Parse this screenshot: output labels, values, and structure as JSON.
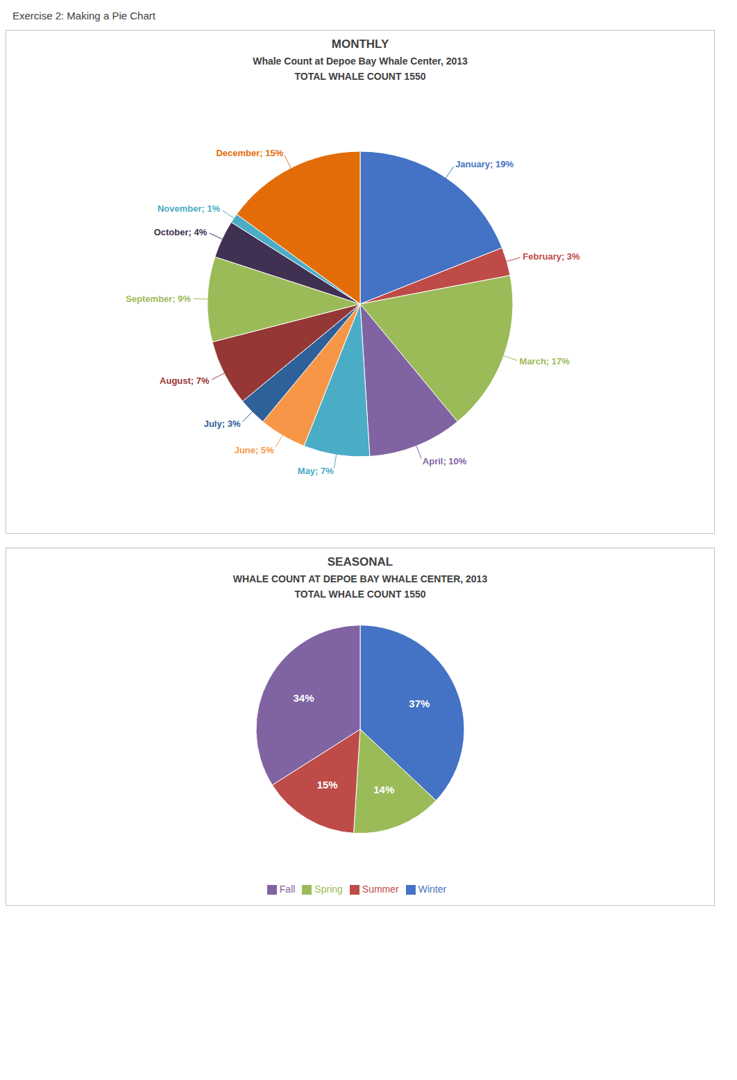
{
  "title": "Exercise 2: Making a Pie Chart",
  "chart_data": [
    {
      "type": "pie",
      "title": "MONTHLY",
      "subtitle": "Whale Count at Depoe Bay Whale Center, 2013",
      "annotations": [
        "TOTAL WHALE COUNT 1550"
      ],
      "categories": [
        "January",
        "February",
        "March",
        "April",
        "May",
        "June",
        "July",
        "August",
        "September",
        "October",
        "November",
        "December"
      ],
      "values": [
        19,
        3,
        17,
        10,
        7,
        5,
        3,
        7,
        9,
        4,
        1,
        15
      ],
      "value_labels": [
        "January; 19%",
        "February; 3%",
        "March; 17%",
        "April; 10%",
        "May; 7%",
        "June; 5%",
        "July; 3%",
        "August; 7%",
        "September; 9%",
        "October; 4%",
        "November; 1%",
        "December; 15%"
      ],
      "colors": [
        "#4472C4",
        "#BE4B48",
        "#9BBB59",
        "#8064A2",
        "#4BACC6",
        "#F79646",
        "#2E6099",
        "#953735",
        "#9BBB59",
        "#403152",
        "#4BACC6",
        "#E36C09"
      ],
      "data_labels": true
    },
    {
      "type": "pie",
      "title": "SEASONAL",
      "subtitle": "WHALE COUNT AT DEPOE BAY WHALE CENTER, 2013",
      "annotations": [
        "TOTAL WHALE COUNT 1550"
      ],
      "categories": [
        "Winter",
        "Spring",
        "Summer",
        "Fall"
      ],
      "values": [
        37,
        14,
        15,
        34
      ],
      "value_labels": [
        "37%",
        "14%",
        "15%",
        "34%"
      ],
      "colors": [
        "#4472C4",
        "#9BBB59",
        "#BE4B48",
        "#8064A2"
      ],
      "data_labels": true,
      "legend": "bottom"
    }
  ]
}
